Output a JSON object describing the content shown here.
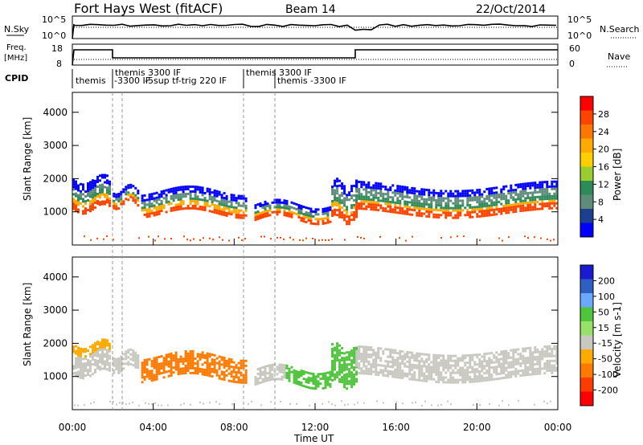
{
  "header": {
    "title": "Fort Hays West (fitACF)",
    "beam": "Beam 14",
    "date": "22/Oct/2014"
  },
  "noise_panel": {
    "left_label": "N.Sky",
    "right_label": "N.Search",
    "left_ticks": [
      "10^5",
      "10^0"
    ],
    "right_ticks": [
      "10^5",
      "10^0"
    ]
  },
  "freq_panel": {
    "left_label_1": "Freq.",
    "left_label_2": "[MHz]",
    "right_label": "Nave",
    "left_ticks": [
      "18",
      "8"
    ],
    "right_ticks": [
      "60",
      "0"
    ]
  },
  "cpid": {
    "label": "CPID",
    "segments": [
      "themis",
      "-3300 IF",
      "themis 3300 IF",
      "-5sup tf-trig 220 IF",
      "themis 3300 IF",
      "themis -3300 IF"
    ]
  },
  "power_colorbar": {
    "label": "Power [dB]",
    "ticks": [
      "28",
      "24",
      "20",
      "16",
      "12",
      "8",
      "4"
    ],
    "colors": [
      "#ff0000",
      "#ff4400",
      "#ff7700",
      "#ffaa00",
      "#ffd000",
      "#9acd32",
      "#2e8b57",
      "#5f8c7a",
      "#1d3f8f",
      "#0000ff"
    ]
  },
  "velocity_colorbar": {
    "label": "Velocity [m s-1]",
    "ticks": [
      "200",
      "100",
      "50",
      "15",
      "-15",
      "-50",
      "-100",
      "-200"
    ],
    "colors": [
      "#1a1ad0",
      "#2d5fc4",
      "#6aa9ff",
      "#4fc43c",
      "#97e06a",
      "#c8c8c0",
      "#ffaa00",
      "#ff7a00",
      "#ff3c00",
      "#ff0000"
    ]
  },
  "chart_data": [
    {
      "type": "heatmap",
      "panel": "power",
      "ylabel": "Slant Range [km]",
      "yticks": [
        "4000",
        "3000",
        "2000",
        "1000"
      ],
      "ylim": [
        0,
        4600
      ],
      "xlim": [
        0,
        24
      ],
      "series": [
        {
          "t0": 0.0,
          "t1": 1.9,
          "r0": 1100,
          "r1": 2000
        },
        {
          "t0": 2.0,
          "t1": 3.3,
          "r0": 1250,
          "r1": 1700
        },
        {
          "t0": 3.4,
          "t1": 8.6,
          "r0": 950,
          "r1": 1650
        },
        {
          "t0": 9.0,
          "t1": 12.8,
          "r0": 800,
          "r1": 1250
        },
        {
          "t0": 12.8,
          "t1": 14.0,
          "r0": 750,
          "r1": 1900
        },
        {
          "t0": 14.0,
          "t1": 24.0,
          "r0": 950,
          "r1": 1800
        }
      ]
    },
    {
      "type": "heatmap",
      "panel": "velocity",
      "ylabel": "Slant Range [km]",
      "yticks": [
        "4000",
        "3000",
        "2000",
        "1000"
      ],
      "ylim": [
        0,
        4600
      ],
      "xlim": [
        0,
        24
      ],
      "xticks": [
        "00:00",
        "04:00",
        "08:00",
        "12:00",
        "16:00",
        "20:00",
        "00:00"
      ],
      "xlabel": "Time UT"
    }
  ]
}
